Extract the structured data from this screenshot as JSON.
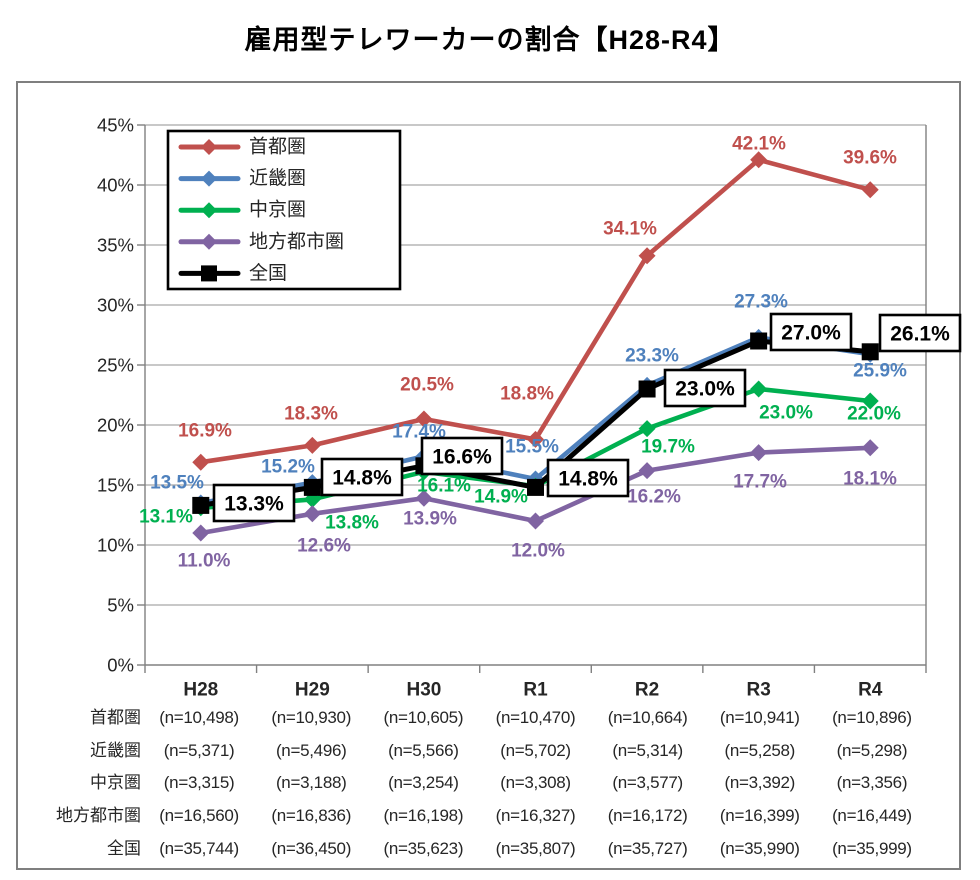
{
  "title": "雇用型テレワーカーの割合【H28-R4】",
  "chart_data": {
    "type": "line",
    "categories": [
      "H28",
      "H29",
      "H30",
      "R1",
      "R2",
      "R3",
      "R4"
    ],
    "ylim": [
      0,
      45
    ],
    "ytick_step": 5,
    "yticks": [
      "0%",
      "5%",
      "10%",
      "15%",
      "20%",
      "25%",
      "30%",
      "35%",
      "40%",
      "45%"
    ],
    "grid": true,
    "legend_position": "top-left",
    "label_format": "percent_one_decimal",
    "series": [
      {
        "name": "首都圏",
        "color": "#C0504D",
        "marker": "diamond",
        "boxed_labels": false,
        "values": [
          16.9,
          18.3,
          20.5,
          18.8,
          34.1,
          42.1,
          39.6
        ]
      },
      {
        "name": "近畿圏",
        "color": "#4F81BD",
        "marker": "diamond",
        "boxed_labels": false,
        "values": [
          13.5,
          15.2,
          17.4,
          15.5,
          23.3,
          27.3,
          25.9
        ]
      },
      {
        "name": "中京圏",
        "color": "#00B050",
        "marker": "diamond",
        "boxed_labels": false,
        "values": [
          13.1,
          13.8,
          16.1,
          14.9,
          19.7,
          23.0,
          22.0
        ]
      },
      {
        "name": "地方都市圏",
        "color": "#8064A2",
        "marker": "diamond",
        "boxed_labels": false,
        "values": [
          11.0,
          12.6,
          13.9,
          12.0,
          16.2,
          17.7,
          18.1
        ]
      },
      {
        "name": "全国",
        "color": "#000000",
        "marker": "square",
        "boxed_labels": true,
        "values": [
          13.3,
          14.8,
          16.6,
          14.8,
          23.0,
          27.0,
          26.1
        ]
      }
    ],
    "colors": {
      "gridline": "#A6A6A6",
      "axis": "#808080",
      "axis_text": "#262626",
      "label_box_fill": "#FFFFFF",
      "label_box_border": "#000000"
    }
  },
  "sample_table": {
    "rows": [
      {
        "label": "首都圏",
        "cells": [
          "(n=10,498)",
          "(n=10,930)",
          "(n=10,605)",
          "(n=10,470)",
          "(n=10,664)",
          "(n=10,941)",
          "(n=10,896)"
        ]
      },
      {
        "label": "近畿圏",
        "cells": [
          "(n=5,371)",
          "(n=5,496)",
          "(n=5,566)",
          "(n=5,702)",
          "(n=5,314)",
          "(n=5,258)",
          "(n=5,298)"
        ]
      },
      {
        "label": "中京圏",
        "cells": [
          "(n=3,315)",
          "(n=3,188)",
          "(n=3,254)",
          "(n=3,308)",
          "(n=3,577)",
          "(n=3,392)",
          "(n=3,356)"
        ]
      },
      {
        "label": "地方都市圏",
        "cells": [
          "(n=16,560)",
          "(n=16,836)",
          "(n=16,198)",
          "(n=16,327)",
          "(n=16,172)",
          "(n=16,399)",
          "(n=16,449)"
        ]
      },
      {
        "label": "全国",
        "cells": [
          "(n=35,744)",
          "(n=36,450)",
          "(n=35,623)",
          "(n=35,807)",
          "(n=35,727)",
          "(n=35,990)",
          "(n=35,999)"
        ]
      }
    ]
  }
}
